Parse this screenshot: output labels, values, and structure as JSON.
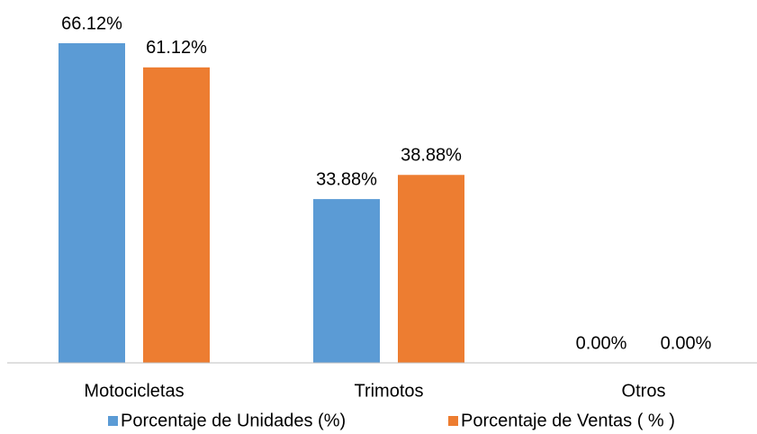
{
  "chart_data": {
    "type": "bar",
    "categories": [
      "Motocicletas",
      "Trimotos",
      "Otros"
    ],
    "series": [
      {
        "name": "Porcentaje de Unidades (%)",
        "color": "#5b9bd5",
        "values": [
          66.12,
          33.88,
          0
        ],
        "value_labels": [
          "66.12%",
          "33.88%",
          "0.00%"
        ]
      },
      {
        "name": "Porcentaje de Ventas ( % )",
        "color": "#ed7d31",
        "values": [
          61.12,
          38.88,
          0
        ],
        "value_labels": [
          "61.12%",
          "38.88%",
          "0.00%"
        ]
      }
    ],
    "legend": "bottom"
  }
}
